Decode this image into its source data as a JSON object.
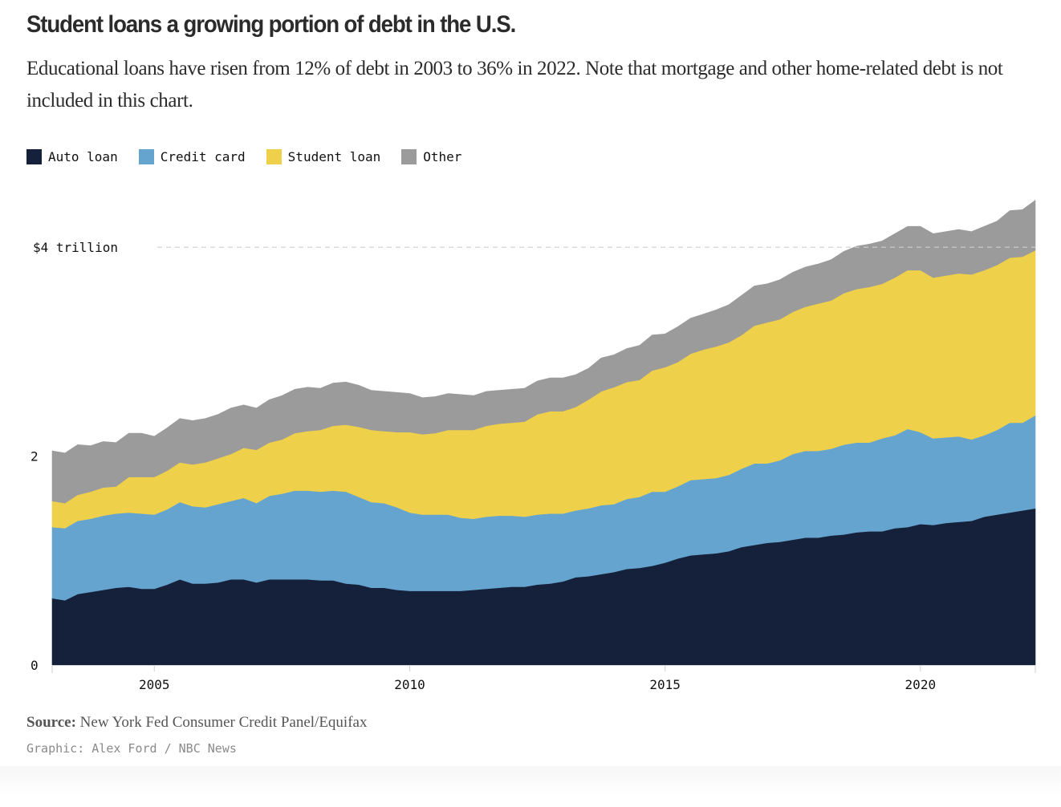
{
  "header": {
    "title": "Student loans a growing portion of debt in the U.S.",
    "subtitle": "Educational loans have risen from 12% of debt in 2003 to 36% in 2022. Note that mortgage and other home-related debt is not included in this chart."
  },
  "footer": {
    "source_label": "Source:",
    "source_text": "New York Fed Consumer Credit Panel/Equifax",
    "credit": "Graphic: Alex Ford / NBC News"
  },
  "chart_data": {
    "type": "area",
    "stacked": true,
    "title": "Student loans a growing portion of debt in the U.S.",
    "xlabel": "",
    "ylabel": "",
    "units": "trillions of US dollars",
    "frequency": "quarterly",
    "x_start": "2003 Q1",
    "x_end": "2022 Q2",
    "xlim": [
      2003.0,
      2022.25
    ],
    "ylim": [
      0,
      4.45
    ],
    "x_ticks": [
      2005,
      2010,
      2015,
      2020
    ],
    "x_tick_labels": [
      "2005",
      "2010",
      "2015",
      "2020"
    ],
    "y_ticks": [
      0,
      2,
      4
    ],
    "y_tick_labels": [
      "0",
      "2",
      "$4 trillion"
    ],
    "gridlines": [
      {
        "value": 4,
        "style": "dashed"
      }
    ],
    "legend_position": "top-left",
    "series": [
      {
        "name": "Auto loan",
        "color": "#15203a",
        "values": [
          0.64,
          0.62,
          0.68,
          0.7,
          0.72,
          0.74,
          0.75,
          0.73,
          0.73,
          0.77,
          0.82,
          0.78,
          0.78,
          0.79,
          0.82,
          0.82,
          0.79,
          0.82,
          0.82,
          0.82,
          0.82,
          0.81,
          0.81,
          0.78,
          0.77,
          0.74,
          0.74,
          0.72,
          0.71,
          0.71,
          0.71,
          0.71,
          0.71,
          0.72,
          0.73,
          0.74,
          0.75,
          0.75,
          0.77,
          0.78,
          0.8,
          0.84,
          0.85,
          0.87,
          0.89,
          0.92,
          0.93,
          0.95,
          0.98,
          1.02,
          1.05,
          1.06,
          1.07,
          1.09,
          1.13,
          1.15,
          1.17,
          1.18,
          1.2,
          1.22,
          1.22,
          1.24,
          1.25,
          1.27,
          1.28,
          1.28,
          1.31,
          1.32,
          1.35,
          1.34,
          1.36,
          1.37,
          1.38,
          1.42,
          1.44,
          1.46,
          1.48,
          1.5
        ]
      },
      {
        "name": "Credit card",
        "color": "#65a4ce",
        "values": [
          0.68,
          0.69,
          0.7,
          0.7,
          0.71,
          0.71,
          0.71,
          0.72,
          0.71,
          0.72,
          0.74,
          0.74,
          0.73,
          0.75,
          0.75,
          0.78,
          0.76,
          0.8,
          0.82,
          0.85,
          0.85,
          0.85,
          0.86,
          0.88,
          0.84,
          0.82,
          0.81,
          0.79,
          0.75,
          0.73,
          0.73,
          0.73,
          0.7,
          0.68,
          0.69,
          0.69,
          0.68,
          0.67,
          0.67,
          0.67,
          0.65,
          0.64,
          0.65,
          0.66,
          0.65,
          0.67,
          0.68,
          0.71,
          0.68,
          0.69,
          0.72,
          0.72,
          0.72,
          0.73,
          0.75,
          0.78,
          0.76,
          0.78,
          0.82,
          0.83,
          0.83,
          0.83,
          0.86,
          0.86,
          0.85,
          0.89,
          0.89,
          0.94,
          0.88,
          0.83,
          0.82,
          0.82,
          0.78,
          0.78,
          0.81,
          0.86,
          0.84,
          0.89
        ]
      },
      {
        "name": "Student loan",
        "color": "#eed04b",
        "values": [
          0.25,
          0.24,
          0.25,
          0.26,
          0.27,
          0.26,
          0.34,
          0.35,
          0.36,
          0.37,
          0.38,
          0.4,
          0.43,
          0.44,
          0.45,
          0.48,
          0.51,
          0.51,
          0.52,
          0.55,
          0.57,
          0.59,
          0.62,
          0.64,
          0.67,
          0.69,
          0.69,
          0.72,
          0.77,
          0.77,
          0.78,
          0.81,
          0.84,
          0.85,
          0.87,
          0.88,
          0.89,
          0.91,
          0.96,
          0.98,
          0.98,
          0.99,
          1.04,
          1.09,
          1.12,
          1.12,
          1.12,
          1.16,
          1.19,
          1.19,
          1.21,
          1.24,
          1.26,
          1.27,
          1.28,
          1.32,
          1.35,
          1.35,
          1.36,
          1.38,
          1.41,
          1.42,
          1.45,
          1.47,
          1.49,
          1.48,
          1.51,
          1.52,
          1.55,
          1.54,
          1.55,
          1.56,
          1.58,
          1.58,
          1.58,
          1.58,
          1.59,
          1.58
        ]
      },
      {
        "name": "Other",
        "color": "#9b9b9b",
        "values": [
          0.48,
          0.48,
          0.48,
          0.44,
          0.44,
          0.42,
          0.42,
          0.42,
          0.39,
          0.41,
          0.42,
          0.42,
          0.42,
          0.42,
          0.44,
          0.41,
          0.4,
          0.41,
          0.42,
          0.42,
          0.42,
          0.4,
          0.41,
          0.41,
          0.4,
          0.38,
          0.38,
          0.38,
          0.37,
          0.35,
          0.35,
          0.35,
          0.34,
          0.33,
          0.33,
          0.32,
          0.32,
          0.32,
          0.32,
          0.32,
          0.32,
          0.31,
          0.3,
          0.32,
          0.31,
          0.32,
          0.33,
          0.34,
          0.32,
          0.34,
          0.34,
          0.34,
          0.35,
          0.36,
          0.38,
          0.38,
          0.37,
          0.38,
          0.38,
          0.38,
          0.38,
          0.39,
          0.4,
          0.41,
          0.41,
          0.41,
          0.42,
          0.42,
          0.42,
          0.42,
          0.42,
          0.42,
          0.41,
          0.42,
          0.42,
          0.45,
          0.45,
          0.48
        ]
      }
    ]
  }
}
